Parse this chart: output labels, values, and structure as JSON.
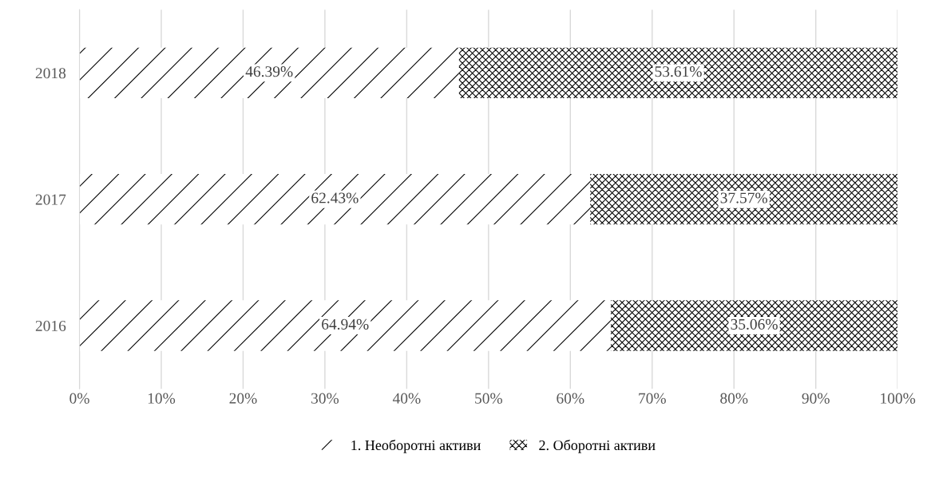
{
  "chart_data": {
    "type": "bar",
    "orientation": "horizontal",
    "stacked": true,
    "categories": [
      "2018",
      "2017",
      "2016"
    ],
    "series": [
      {
        "name": "1. Необоротні активи",
        "color": "#000000",
        "values": [
          46.39,
          62.43,
          64.94
        ],
        "value_labels": [
          "46.39%",
          "62.43%",
          "64.94%"
        ]
      },
      {
        "name": "2. Оборотні активи",
        "color": "#000000",
        "values": [
          53.61,
          37.57,
          35.06
        ],
        "value_labels": [
          "53.61%",
          "37.57%",
          "35.06%"
        ]
      }
    ],
    "xlim": [
      0,
      100
    ],
    "xticks": [
      {
        "value": 0,
        "label": "0%"
      },
      {
        "value": 10,
        "label": "10%"
      },
      {
        "value": 20,
        "label": "20%"
      },
      {
        "value": 30,
        "label": "30%"
      },
      {
        "value": 40,
        "label": "40%"
      },
      {
        "value": 50,
        "label": "50%"
      },
      {
        "value": 60,
        "label": "60%"
      },
      {
        "value": 70,
        "label": "70%"
      },
      {
        "value": 80,
        "label": "80%"
      },
      {
        "value": 90,
        "label": "90%"
      },
      {
        "value": 100,
        "label": "100%"
      }
    ],
    "grid": "x",
    "legend": "bottom"
  }
}
